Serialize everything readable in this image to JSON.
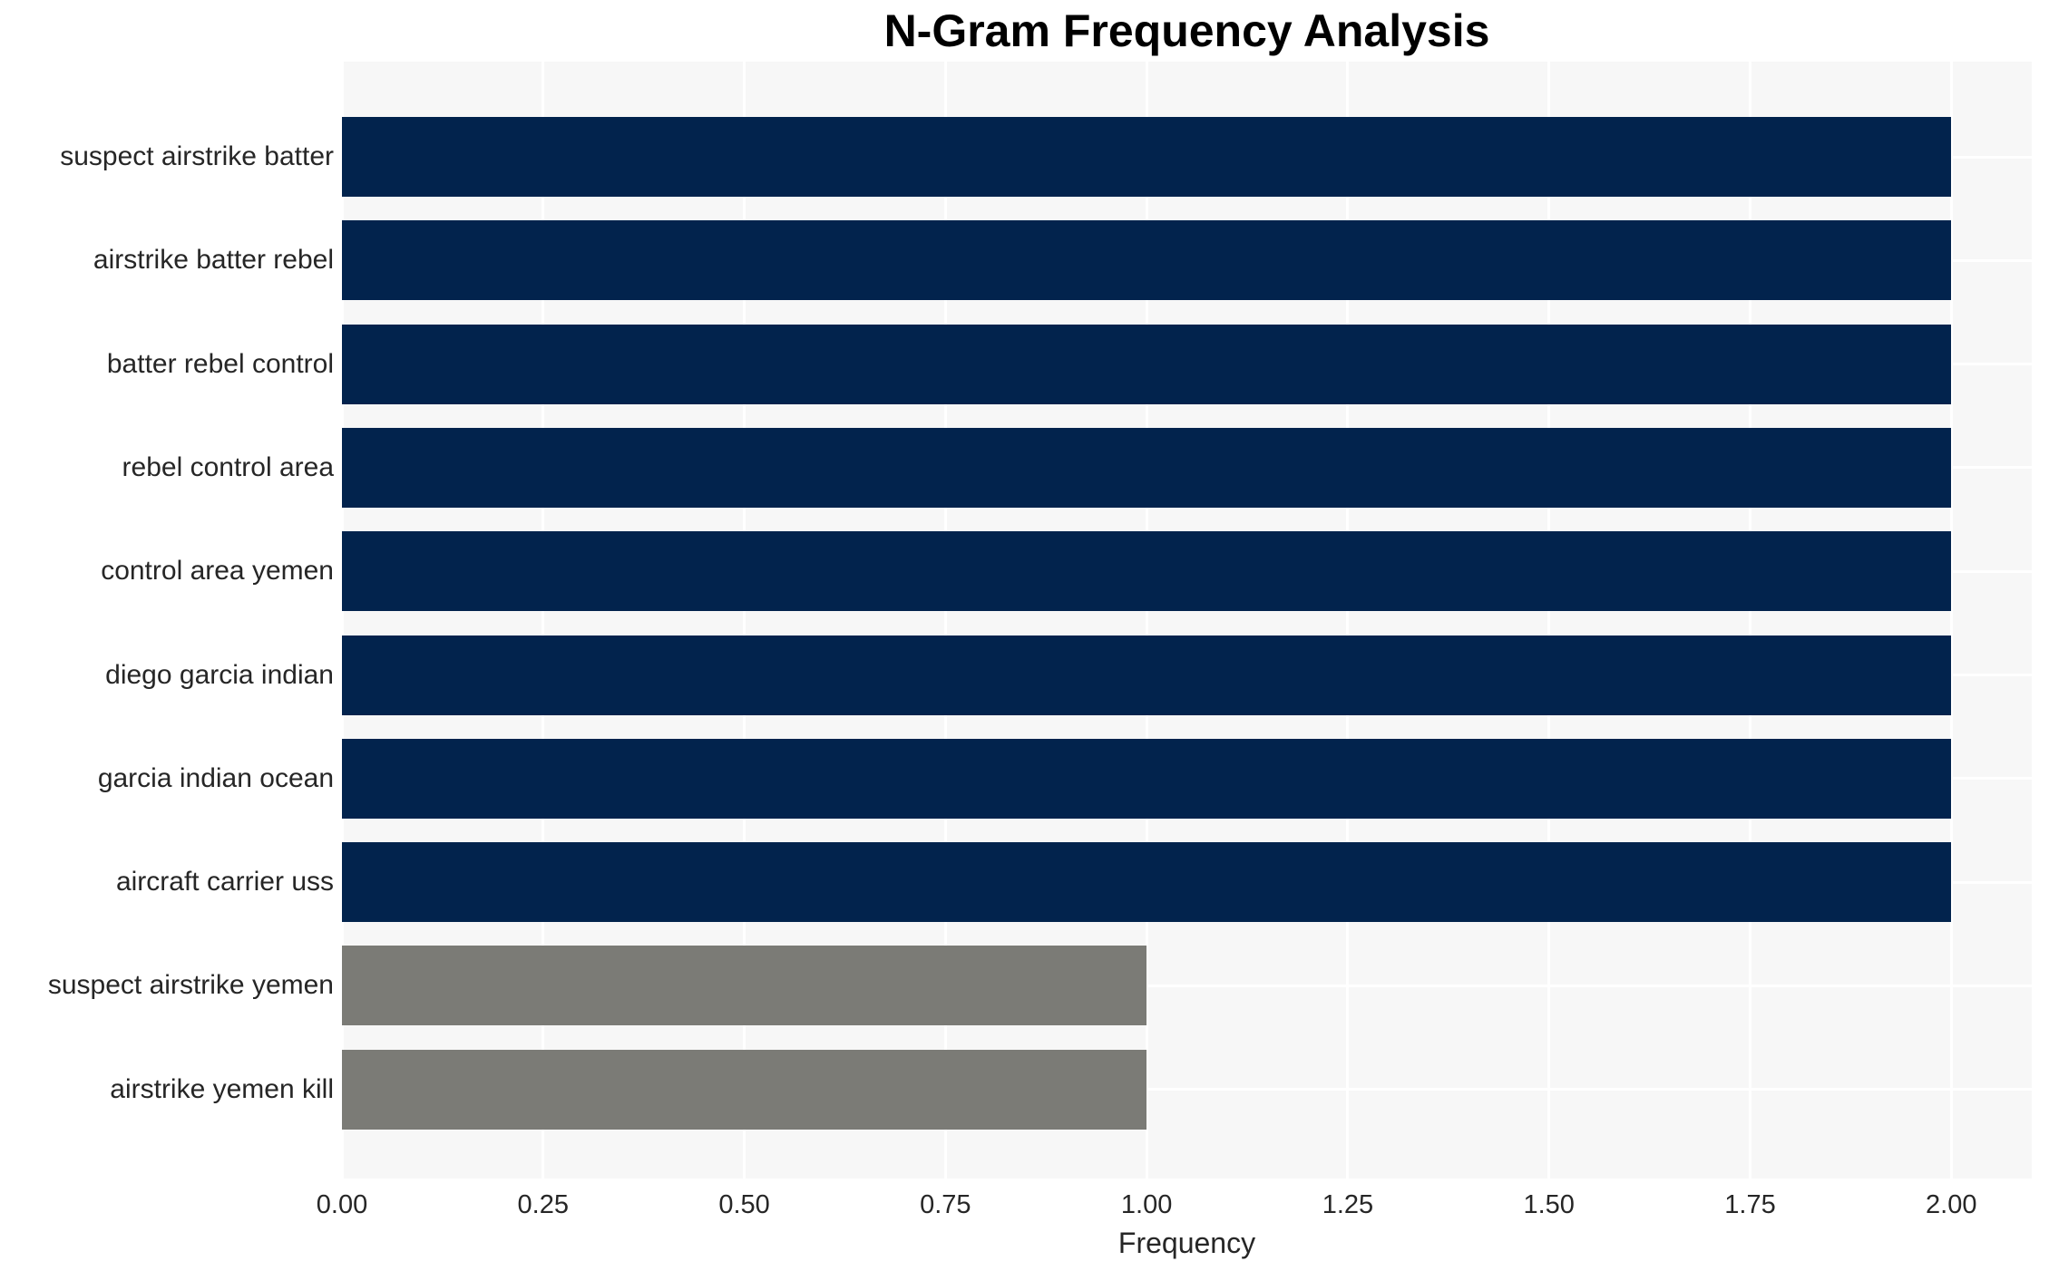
{
  "chart_data": {
    "type": "bar",
    "orientation": "horizontal",
    "title": "N-Gram Frequency Analysis",
    "xlabel": "Frequency",
    "ylabel": "",
    "categories": [
      "suspect airstrike batter",
      "airstrike batter rebel",
      "batter rebel control",
      "rebel control area",
      "control area yemen",
      "diego garcia indian",
      "garcia indian ocean",
      "aircraft carrier uss",
      "suspect airstrike yemen",
      "airstrike yemen kill"
    ],
    "values": [
      2,
      2,
      2,
      2,
      2,
      2,
      2,
      2,
      1,
      1
    ],
    "bar_colors": [
      "#02234d",
      "#02234d",
      "#02234d",
      "#02234d",
      "#02234d",
      "#02234d",
      "#02234d",
      "#02234d",
      "#7b7b76",
      "#7b7b76"
    ],
    "xlim": [
      0,
      2.1
    ],
    "xticks": [
      0,
      0.25,
      0.5,
      0.75,
      1,
      1.25,
      1.5,
      1.75,
      2
    ],
    "xtick_labels": [
      "0.00",
      "0.25",
      "0.50",
      "0.75",
      "1.00",
      "1.25",
      "1.50",
      "1.75",
      "2.00"
    ],
    "grid": true,
    "legend": false,
    "colors": {
      "plot_background": "#f7f7f7",
      "grid_color": "#ffffff",
      "navy_bar": "#02234d",
      "gray_bar": "#7b7b76",
      "tick_text": "#262626",
      "title_text": "#000000"
    }
  }
}
